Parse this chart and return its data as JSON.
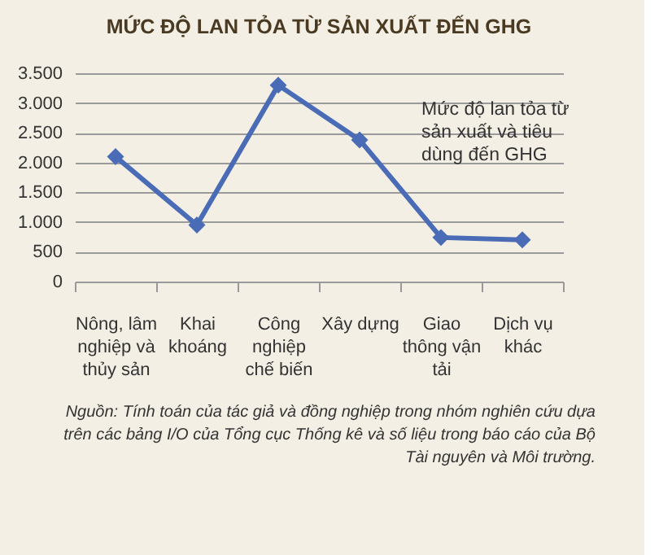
{
  "chart_data": {
    "type": "line",
    "title": "MỨC ĐỘ LAN TỎA TỪ SẢN XUẤT ĐẾN GHG",
    "categories": [
      "Nông, lâm nghiệp và thủy sản",
      "Khai khoáng",
      "Công nghiệp chế biến",
      "Xây dựng",
      "Giao thông vận tải",
      "Dịch vụ khác"
    ],
    "series": [
      {
        "name": "Mức độ lan tỏa từ sản xuất và tiêu dùng đến GHG",
        "color": "#4a6bb5",
        "values": [
          2100,
          950,
          3300,
          2380,
          740,
          700
        ]
      }
    ],
    "ylim": [
      0,
      3500
    ],
    "yticks": [
      0,
      {
        "value": 500,
        "label": "500"
      },
      {
        "value": 1000,
        "label": "1.000"
      },
      {
        "value": 1500,
        "label": "1.500"
      },
      {
        "value": 2000,
        "label": "2.000"
      },
      {
        "value": 2500,
        "label": "2.500"
      },
      {
        "value": 3000,
        "label": "3.000"
      },
      {
        "value": 3500,
        "label": "3.500"
      }
    ],
    "grid": "y",
    "marker": "diamond",
    "line_style": "solid",
    "annotations": [
      "Nguồn: Tính toán của tác giả và đồng nghiệp trong nhóm nghiên cứu dựa trên các bảng I/O của Tổng cục Thống kê  và số liệu trong báo cáo của Bộ Tài nguyên và Môi trường."
    ]
  }
}
